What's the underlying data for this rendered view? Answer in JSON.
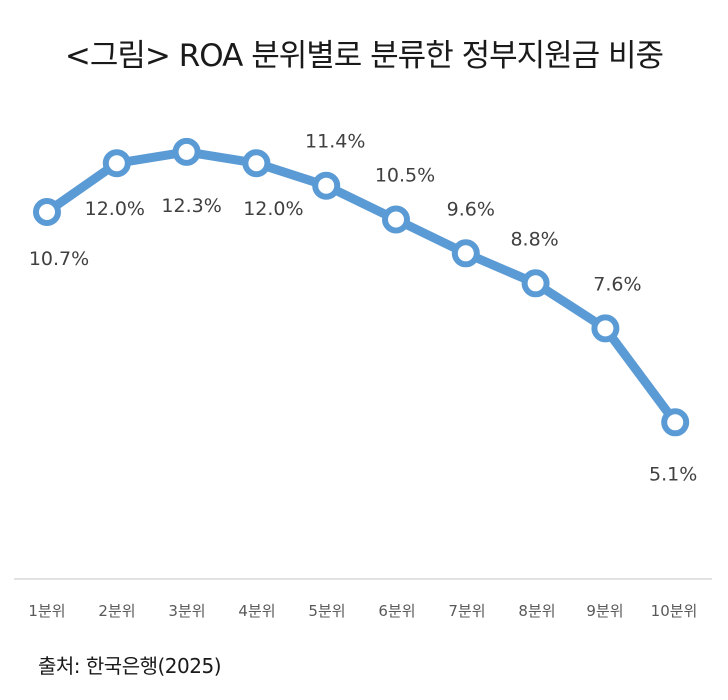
{
  "title": "<그림> ROA 분위별로 분류한 정부지원금 비중",
  "source": "출처: 한국은행(2025)",
  "colors": {
    "line": "#5B9BD5",
    "axis": "#d9d9d9",
    "label": "#404040",
    "tick": "#595959"
  },
  "chart_data": {
    "type": "line",
    "categories": [
      "1분위",
      "2분위",
      "3분위",
      "4분위",
      "5분위",
      "6분위",
      "7분위",
      "8분위",
      "9분위",
      "10분위"
    ],
    "series": [
      {
        "values": [
          10.7,
          12.0,
          12.3,
          12.0,
          11.4,
          10.5,
          9.6,
          8.8,
          7.6,
          5.1
        ]
      }
    ],
    "data_labels": [
      "10.7%",
      "12.0%",
      "12.3%",
      "12.0%",
      "11.4%",
      "10.5%",
      "9.6%",
      "8.8%",
      "7.6%",
      "5.1%"
    ],
    "title": "",
    "xlabel": "",
    "ylabel": "",
    "ylim": [
      0,
      14
    ],
    "grid": false,
    "markers": "hollow-circle"
  }
}
